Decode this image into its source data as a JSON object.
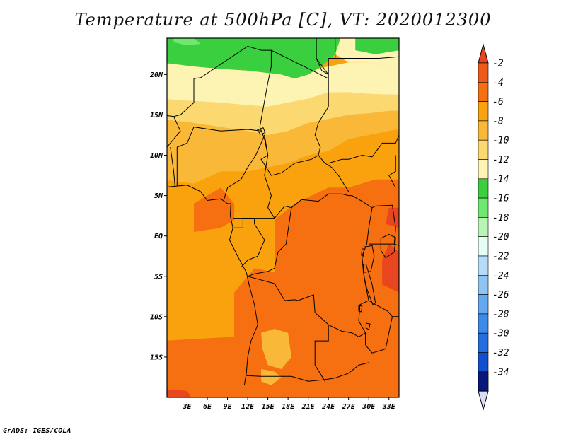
{
  "title": "Temperature at 500hPa [C], VT: 2020012300",
  "credit": "GrADS: IGES/COLA",
  "map": {
    "lon_range": [
      0,
      34.5
    ],
    "lat_range": [
      -20,
      24.5
    ],
    "lat_ticks": [
      {
        "label": "20N",
        "value": 20
      },
      {
        "label": "15N",
        "value": 15
      },
      {
        "label": "10N",
        "value": 10
      },
      {
        "label": "5N",
        "value": 5
      },
      {
        "label": "EQ",
        "value": 0
      },
      {
        "label": "5S",
        "value": -5
      },
      {
        "label": "10S",
        "value": -10
      },
      {
        "label": "15S",
        "value": -15
      }
    ],
    "lon_ticks": [
      {
        "label": "3E",
        "value": 3
      },
      {
        "label": "6E",
        "value": 6
      },
      {
        "label": "9E",
        "value": 9
      },
      {
        "label": "12E",
        "value": 12
      },
      {
        "label": "15E",
        "value": 15
      },
      {
        "label": "18E",
        "value": 18
      },
      {
        "label": "21E",
        "value": 21
      },
      {
        "label": "24E",
        "value": 24
      },
      {
        "label": "27E",
        "value": 27
      },
      {
        "label": "30E",
        "value": 30
      },
      {
        "label": "33E",
        "value": 33
      }
    ]
  },
  "colorbar": {
    "levels": [
      {
        "label": "-2",
        "color": "#ee5a1a"
      },
      {
        "label": "-4",
        "color": "#f66f10"
      },
      {
        "label": "-6",
        "color": "#f9a20e"
      },
      {
        "label": "-8",
        "color": "#fab838"
      },
      {
        "label": "-10",
        "color": "#fbd870"
      },
      {
        "label": "-12",
        "color": "#fdf3b2"
      },
      {
        "label": "-14",
        "color": "#39cf3f"
      },
      {
        "label": "-16",
        "color": "#6ee86e"
      },
      {
        "label": "-18",
        "color": "#b8f5b4"
      },
      {
        "label": "-20",
        "color": "#e6fcf6"
      },
      {
        "label": "-22",
        "color": "#b4dcfa"
      },
      {
        "label": "-24",
        "color": "#8ec4f4"
      },
      {
        "label": "-26",
        "color": "#64a8ef"
      },
      {
        "label": "-28",
        "color": "#3d8be9"
      },
      {
        "label": "-30",
        "color": "#236de0"
      },
      {
        "label": "-32",
        "color": "#124fd0"
      },
      {
        "label": "-34",
        "color": "#0c2fa8"
      }
    ],
    "top_arrow_color": "#e8461e",
    "bottom_block_color": "#08177a",
    "bottom_arrow_color": "#dcdcf8"
  },
  "field_colors": {
    "warmest": "#e8461e",
    "very_warm": "#f66f10",
    "warm": "#f9a20e",
    "mild": "#fab838",
    "cool": "#fbd870",
    "cooler": "#fdf3b2",
    "cold": "#39cf3f",
    "colder": "#6ee86e"
  }
}
